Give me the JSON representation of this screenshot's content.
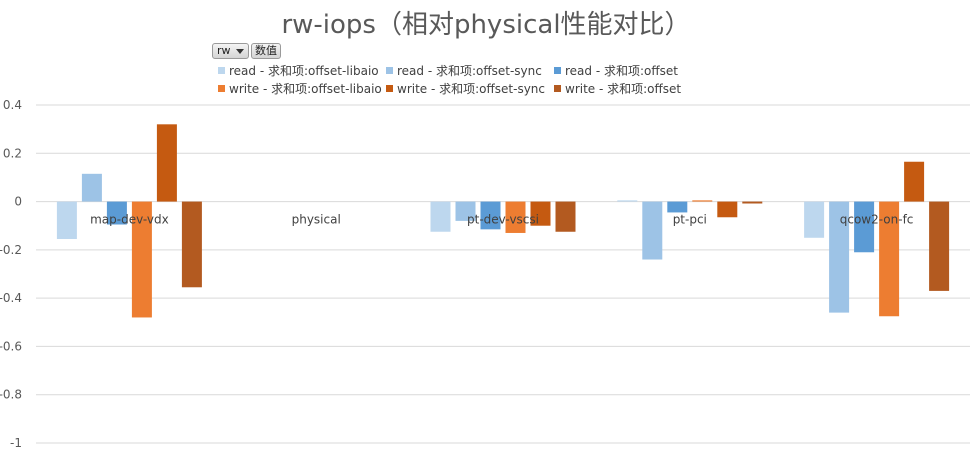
{
  "title": "rw-iops（相对physical性能对比）",
  "pivot": {
    "field_button": "rw",
    "value_button": "数值"
  },
  "chart_data": {
    "type": "bar",
    "title": "rw-iops（相对physical性能对比）",
    "categories": [
      "map-dev-vdx",
      "physical",
      "pt-dev-vscsi",
      "pt-pci",
      "qcow2-on-fc"
    ],
    "ylim": [
      -1,
      0.4
    ],
    "yticks": [
      0.4,
      0.2,
      0,
      -0.2,
      -0.4,
      -0.6,
      -0.8,
      -1
    ],
    "ytick_labels": [
      "0.4",
      "0.2",
      "0",
      "-0.2",
      "-0.4",
      "-0.6",
      "-0.8",
      "-1"
    ],
    "grid": true,
    "legend_position": "top",
    "series": [
      {
        "name": "read - 求和项:offset-libaio",
        "color": "#bdd7ee",
        "values": [
          -0.155,
          0,
          -0.125,
          0.005,
          -0.15
        ]
      },
      {
        "name": "read - 求和项:offset-sync",
        "color": "#9dc3e6",
        "values": [
          0.115,
          0,
          -0.08,
          -0.24,
          -0.46
        ]
      },
      {
        "name": "read - 求和项:offset",
        "color": "#5b9bd5",
        "values": [
          -0.095,
          0,
          -0.115,
          -0.045,
          -0.21
        ]
      },
      {
        "name": "write - 求和项:offset-libaio",
        "color": "#ed7d31",
        "values": [
          -0.48,
          0,
          -0.13,
          0.005,
          -0.475
        ]
      },
      {
        "name": "write - 求和项:offset-sync",
        "color": "#c55a11",
        "values": [
          0.32,
          0,
          -0.1,
          -0.065,
          0.165
        ]
      },
      {
        "name": "write - 求和项:offset",
        "color": "#b35a20",
        "values": [
          -0.355,
          0,
          -0.125,
          -0.008,
          -0.37
        ]
      }
    ]
  }
}
